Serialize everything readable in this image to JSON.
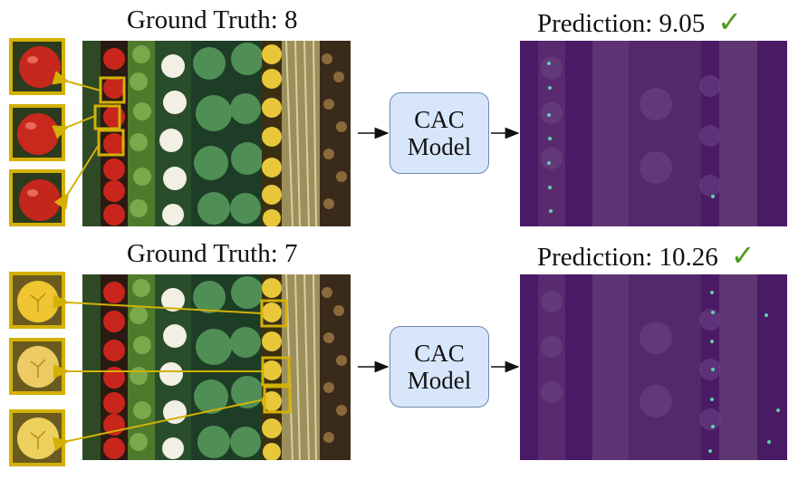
{
  "rows": [
    {
      "ground_truth_label": "Ground Truth: 8",
      "prediction_label": "Prediction: 9.05",
      "check": "✓",
      "model_line1": "CAC",
      "model_line2": "Model",
      "exemplar_fruit": "tomato"
    },
    {
      "ground_truth_label": "Ground Truth: 7",
      "prediction_label": "Prediction: 10.26",
      "check": "✓",
      "model_line1": "CAC",
      "model_line2": "Model",
      "exemplar_fruit": "yellow-fruit"
    }
  ],
  "colors": {
    "exemplar_border": "#d4b106",
    "model_fill": "#d7e6fb",
    "model_border": "#6f89b3",
    "check": "#4c9a1c",
    "density_background": "#4b1a66",
    "density_point": "#5fd0a8"
  }
}
